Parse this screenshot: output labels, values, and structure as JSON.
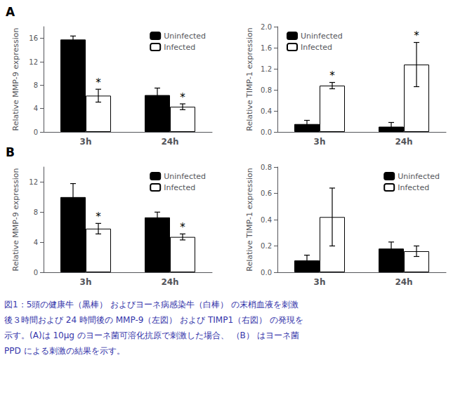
{
  "chart_data": [
    {
      "type": "bar",
      "categories": [
        "3h",
        "24h"
      ],
      "series": [
        {
          "name": "Uninfected",
          "color": "black",
          "values": [
            15.8,
            6.3
          ],
          "errors": [
            0.6,
            1.2
          ]
        },
        {
          "name": "Infected",
          "color": "white",
          "values": [
            6.2,
            4.3
          ],
          "errors": [
            1.1,
            0.5
          ]
        }
      ],
      "ylabel": "Relative MMP-9 expression",
      "ylim": [
        0,
        18
      ],
      "yticks": [
        0,
        4,
        8,
        12,
        16
      ],
      "grid": false,
      "legend": "upper right",
      "annotations": [
        {
          "text": "A"
        },
        {
          "text": "*",
          "category": "3h",
          "series": "Infected"
        },
        {
          "text": "*",
          "category": "24h",
          "series": "Infected"
        }
      ]
    },
    {
      "type": "bar",
      "categories": [
        "3h",
        "24h"
      ],
      "series": [
        {
          "name": "Uninfected",
          "color": "black",
          "values": [
            0.15,
            0.1
          ],
          "errors": [
            0.07,
            0.08
          ]
        },
        {
          "name": "Infected",
          "color": "white",
          "values": [
            0.88,
            1.28
          ],
          "errors": [
            0.06,
            0.42
          ]
        }
      ],
      "ylabel": "Relative TIMP-1 expression",
      "ylim": [
        0,
        2.0
      ],
      "yticks": [
        {
          "value": 0,
          "label": "0.0"
        },
        0.4,
        0.8,
        1.2,
        1.6,
        {
          "value": 2,
          "label": "2.0"
        }
      ],
      "grid": false,
      "legend": "upper left",
      "annotations": [
        {
          "text": "*",
          "category": "3h",
          "series": "Infected"
        },
        {
          "text": "*",
          "category": "24h",
          "series": "Infected"
        }
      ]
    },
    {
      "type": "bar",
      "categories": [
        "3h",
        "24h"
      ],
      "series": [
        {
          "name": "Uninfected",
          "color": "black",
          "values": [
            10.0,
            7.3
          ],
          "errors": [
            1.8,
            0.7
          ]
        },
        {
          "name": "Infected",
          "color": "white",
          "values": [
            5.8,
            4.7
          ],
          "errors": [
            0.7,
            0.4
          ]
        }
      ],
      "ylabel": "Relative MMP-9 expression",
      "ylim": [
        0,
        14
      ],
      "yticks": [
        0,
        4,
        8,
        12
      ],
      "grid": false,
      "legend": "upper right",
      "annotations": [
        {
          "text": "B"
        },
        {
          "text": "*",
          "category": "3h",
          "series": "Infected"
        },
        {
          "text": "*",
          "category": "24h",
          "series": "Infected"
        }
      ]
    },
    {
      "type": "bar",
      "categories": [
        "3h",
        "24h"
      ],
      "series": [
        {
          "name": "Uninfected",
          "color": "black",
          "values": [
            0.09,
            0.18
          ],
          "errors": [
            0.04,
            0.05
          ]
        },
        {
          "name": "Infected",
          "color": "white",
          "values": [
            0.42,
            0.16
          ],
          "errors": [
            0.22,
            0.04
          ]
        }
      ],
      "ylabel": "Relative TIMP-1 expression",
      "ylim": [
        0,
        0.8
      ],
      "yticks": [
        {
          "value": 0,
          "label": "0.0"
        },
        0.2,
        0.4,
        0.6,
        0.8
      ],
      "grid": false,
      "legend": "upper right",
      "annotations": []
    }
  ],
  "caption": {
    "color": "#3333aa",
    "lines": [
      "図1：5頭の健康牛（黒棒） およびヨーネ病感染牛（白棒） の末梢血液を刺激",
      "後３時間および 24 時間後の MMP-9（左図） および TIMP1（右図） の発現を",
      "示す。(A)は 10μg のヨーネ菌可溶化抗原で刺激した場合、 （B） はヨーネ菌",
      "PPD による刺激の結果を示す。"
    ]
  }
}
